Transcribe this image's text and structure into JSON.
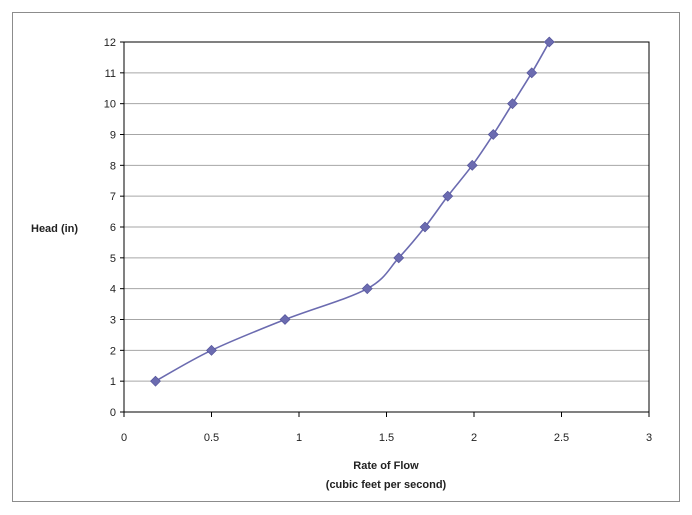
{
  "chart_data": {
    "type": "line",
    "title": "",
    "xlabel_lines": [
      "Rate of Flow",
      "(cubic feet per second)"
    ],
    "ylabel": "Head (in)",
    "xlim": [
      0,
      3
    ],
    "ylim": [
      0,
      12
    ],
    "x_ticks": [
      "0",
      "0.5",
      "1",
      "1.5",
      "2",
      "2.5",
      "3"
    ],
    "y_ticks": [
      "0",
      "1",
      "2",
      "3",
      "4",
      "5",
      "6",
      "7",
      "8",
      "9",
      "10",
      "11",
      "12"
    ],
    "grid": "horizontal",
    "legend": "none",
    "series": [
      {
        "color": "#6b6bb0",
        "marker": "diamond",
        "x": [
          0.18,
          0.5,
          0.92,
          1.39,
          1.57,
          1.72,
          1.85,
          1.99,
          2.11,
          2.22,
          2.33,
          2.43
        ],
        "y": [
          1,
          2,
          3,
          4,
          5,
          6,
          7,
          8,
          9,
          10,
          11,
          12
        ]
      }
    ]
  }
}
